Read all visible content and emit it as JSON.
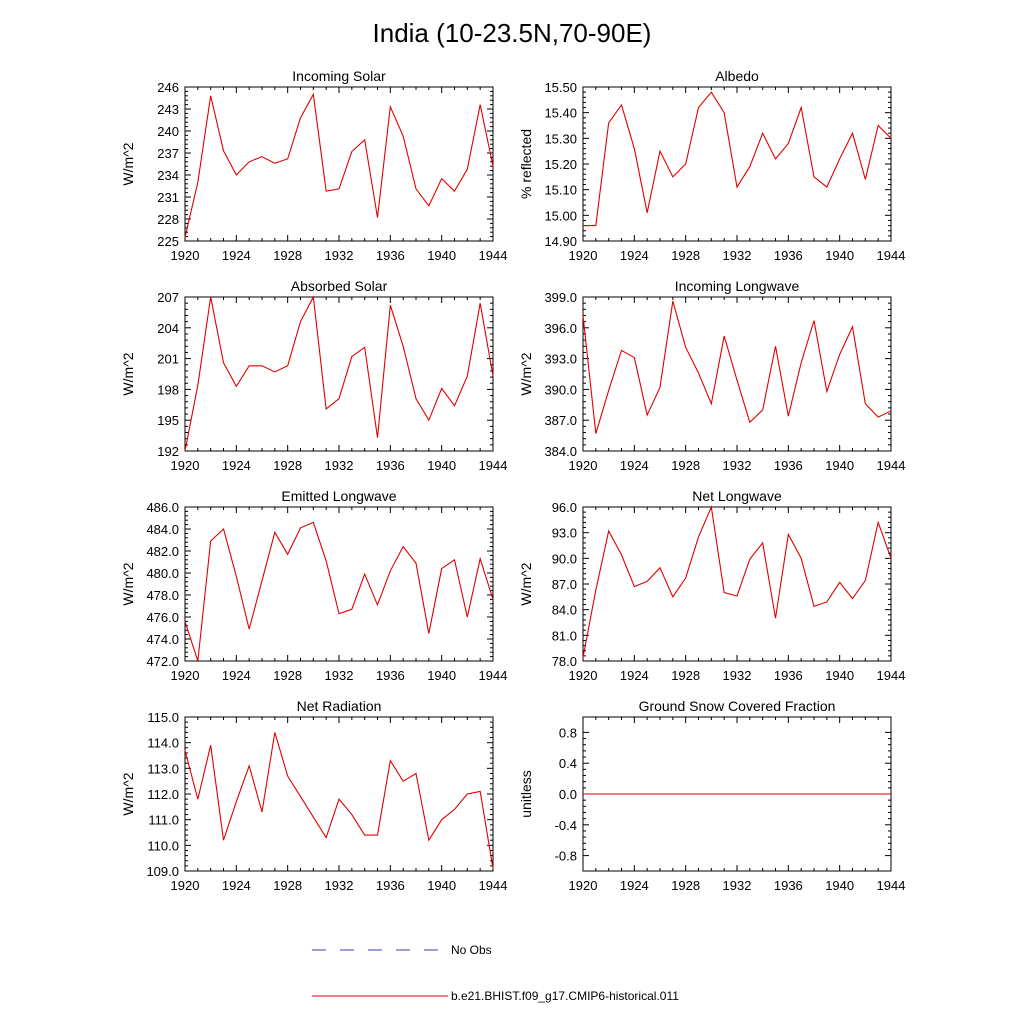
{
  "figure": {
    "title": "India (10-23.5N,70-90E)",
    "series_color": "#e00000",
    "obs_color": "#3b3bbf"
  },
  "legend": {
    "obs_label": "No Obs",
    "model_label": "b.e21.BHIST.f09_g17.CMIP6-historical.011"
  },
  "chart_data": [
    {
      "type": "line",
      "title": "Incoming Solar",
      "ylabel": "W/m^2",
      "xlim": [
        1920,
        1944
      ],
      "ylim": [
        225,
        246
      ],
      "yticks": [
        "225",
        "228",
        "231",
        "234",
        "237",
        "240",
        "243",
        "246"
      ],
      "xticks": [
        "1920",
        "1924",
        "1928",
        "1932",
        "1936",
        "1940",
        "1944"
      ],
      "x": [
        1920,
        1921,
        1922,
        1923,
        1924,
        1925,
        1926,
        1927,
        1928,
        1929,
        1930,
        1931,
        1932,
        1933,
        1934,
        1935,
        1936,
        1937,
        1938,
        1939,
        1940,
        1941,
        1942,
        1943,
        1944
      ],
      "series": [
        {
          "values": [
            225.5,
            233.0,
            244.8,
            237.3,
            234.0,
            235.8,
            236.5,
            235.6,
            236.2,
            241.8,
            245.0,
            231.8,
            232.1,
            237.2,
            238.8,
            228.2,
            243.3,
            239.3,
            232.1,
            229.8,
            233.5,
            231.8,
            234.8,
            243.6,
            235.2
          ]
        }
      ]
    },
    {
      "type": "line",
      "title": "Albedo",
      "ylabel": "% reflected",
      "xlim": [
        1920,
        1944
      ],
      "ylim": [
        14.9,
        15.5
      ],
      "yticks": [
        "14.90",
        "15.00",
        "15.10",
        "15.20",
        "15.30",
        "15.40",
        "15.50"
      ],
      "xticks": [
        "1920",
        "1924",
        "1928",
        "1932",
        "1936",
        "1940",
        "1944"
      ],
      "x": [
        1920,
        1921,
        1922,
        1923,
        1924,
        1925,
        1926,
        1927,
        1928,
        1929,
        1930,
        1931,
        1932,
        1933,
        1934,
        1935,
        1936,
        1937,
        1938,
        1939,
        1940,
        1941,
        1942,
        1943,
        1944
      ],
      "series": [
        {
          "values": [
            14.96,
            14.96,
            15.36,
            15.43,
            15.26,
            15.01,
            15.25,
            15.15,
            15.2,
            15.42,
            15.48,
            15.4,
            15.11,
            15.19,
            15.32,
            15.22,
            15.28,
            15.42,
            15.15,
            15.11,
            15.22,
            15.32,
            15.14,
            15.35,
            15.3
          ]
        }
      ]
    },
    {
      "type": "line",
      "title": "Absorbed Solar",
      "ylabel": "W/m^2",
      "xlim": [
        1920,
        1944
      ],
      "ylim": [
        192,
        207
      ],
      "yticks": [
        "192",
        "195",
        "198",
        "201",
        "204",
        "207"
      ],
      "xticks": [
        "1920",
        "1924",
        "1928",
        "1932",
        "1936",
        "1940",
        "1944"
      ],
      "x": [
        1920,
        1921,
        1922,
        1923,
        1924,
        1925,
        1926,
        1927,
        1928,
        1929,
        1930,
        1931,
        1932,
        1933,
        1934,
        1935,
        1936,
        1937,
        1938,
        1939,
        1940,
        1941,
        1942,
        1943,
        1944
      ],
      "series": [
        {
          "values": [
            192.0,
            198.4,
            207.0,
            200.6,
            198.3,
            200.3,
            200.3,
            199.7,
            200.3,
            204.6,
            207.0,
            196.1,
            197.1,
            201.2,
            202.1,
            193.3,
            206.2,
            202.2,
            197.1,
            195.0,
            198.1,
            196.4,
            199.3,
            206.4,
            199.3
          ]
        }
      ]
    },
    {
      "type": "line",
      "title": "Incoming Longwave",
      "ylabel": "W/m^2",
      "xlim": [
        1920,
        1944
      ],
      "ylim": [
        384,
        399
      ],
      "yticks": [
        "384.0",
        "387.0",
        "390.0",
        "393.0",
        "396.0",
        "399.0"
      ],
      "xticks": [
        "1920",
        "1924",
        "1928",
        "1932",
        "1936",
        "1940",
        "1944"
      ],
      "x": [
        1920,
        1921,
        1922,
        1923,
        1924,
        1925,
        1926,
        1927,
        1928,
        1929,
        1930,
        1931,
        1932,
        1933,
        1934,
        1935,
        1936,
        1937,
        1938,
        1939,
        1940,
        1941,
        1942,
        1943,
        1944
      ],
      "series": [
        {
          "values": [
            397.2,
            385.7,
            389.9,
            393.8,
            393.1,
            387.5,
            390.2,
            398.6,
            394.1,
            391.6,
            388.6,
            395.2,
            390.9,
            386.8,
            388.0,
            394.2,
            387.4,
            392.6,
            396.7,
            389.8,
            393.4,
            396.1,
            388.6,
            387.3,
            387.9
          ]
        }
      ]
    },
    {
      "type": "line",
      "title": "Emitted Longwave",
      "ylabel": "W/m^2",
      "xlim": [
        1920,
        1944
      ],
      "ylim": [
        472,
        486
      ],
      "yticks": [
        "472.0",
        "474.0",
        "476.0",
        "478.0",
        "480.0",
        "482.0",
        "484.0",
        "486.0"
      ],
      "xticks": [
        "1920",
        "1924",
        "1928",
        "1932",
        "1936",
        "1940",
        "1944"
      ],
      "x": [
        1920,
        1921,
        1922,
        1923,
        1924,
        1925,
        1926,
        1927,
        1928,
        1929,
        1930,
        1931,
        1932,
        1933,
        1934,
        1935,
        1936,
        1937,
        1938,
        1939,
        1940,
        1941,
        1942,
        1943,
        1944
      ],
      "series": [
        {
          "values": [
            475.6,
            472.0,
            482.9,
            484.0,
            479.7,
            474.9,
            479.3,
            483.7,
            481.7,
            484.1,
            484.6,
            481.1,
            476.3,
            476.7,
            479.9,
            477.1,
            480.2,
            482.4,
            480.9,
            474.5,
            480.4,
            481.2,
            476.0,
            481.3,
            477.6
          ]
        }
      ]
    },
    {
      "type": "line",
      "title": "Net Longwave",
      "ylabel": "W/m^2",
      "xlim": [
        1920,
        1944
      ],
      "ylim": [
        78,
        96
      ],
      "yticks": [
        "78.0",
        "81.0",
        "84.0",
        "87.0",
        "90.0",
        "93.0",
        "96.0"
      ],
      "xticks": [
        "1920",
        "1924",
        "1928",
        "1932",
        "1936",
        "1940",
        "1944"
      ],
      "x": [
        1920,
        1921,
        1922,
        1923,
        1924,
        1925,
        1926,
        1927,
        1928,
        1929,
        1930,
        1931,
        1932,
        1933,
        1934,
        1935,
        1936,
        1937,
        1938,
        1939,
        1940,
        1941,
        1942,
        1943,
        1944
      ],
      "series": [
        {
          "values": [
            78.4,
            86.3,
            93.2,
            90.4,
            86.7,
            87.3,
            88.9,
            85.5,
            87.7,
            92.5,
            96.0,
            86.0,
            85.6,
            89.9,
            91.8,
            83.0,
            92.8,
            90.0,
            84.4,
            84.9,
            87.2,
            85.3,
            87.4,
            94.2,
            90.0
          ]
        }
      ]
    },
    {
      "type": "line",
      "title": "Net Radiation",
      "ylabel": "W/m^2",
      "xlim": [
        1920,
        1944
      ],
      "ylim": [
        109,
        115
      ],
      "yticks": [
        "109.0",
        "110.0",
        "111.0",
        "112.0",
        "113.0",
        "114.0",
        "115.0"
      ],
      "xticks": [
        "1920",
        "1924",
        "1928",
        "1932",
        "1936",
        "1940",
        "1944"
      ],
      "x": [
        1920,
        1921,
        1922,
        1923,
        1924,
        1925,
        1926,
        1927,
        1928,
        1929,
        1930,
        1931,
        1932,
        1933,
        1934,
        1935,
        1936,
        1937,
        1938,
        1939,
        1940,
        1941,
        1942,
        1943,
        1944
      ],
      "series": [
        {
          "values": [
            113.7,
            111.8,
            113.9,
            110.2,
            111.7,
            113.1,
            111.3,
            114.4,
            112.7,
            111.9,
            111.1,
            110.3,
            111.8,
            111.2,
            110.4,
            110.4,
            113.3,
            112.5,
            112.8,
            110.2,
            111.0,
            111.4,
            112.0,
            112.1,
            109.1
          ]
        }
      ]
    },
    {
      "type": "line",
      "title": "Ground Snow Covered Fraction",
      "ylabel": "unitless",
      "xlim": [
        1920,
        1944
      ],
      "ylim": [
        -1.0,
        1.0
      ],
      "yticks": [
        "-0.8",
        "-0.4",
        "0.0",
        "0.4",
        "0.8"
      ],
      "ytick_values": [
        -0.8,
        -0.4,
        0.0,
        0.4,
        0.8
      ],
      "xticks": [
        "1920",
        "1924",
        "1928",
        "1932",
        "1936",
        "1940",
        "1944"
      ],
      "x": [
        1920,
        1921,
        1922,
        1923,
        1924,
        1925,
        1926,
        1927,
        1928,
        1929,
        1930,
        1931,
        1932,
        1933,
        1934,
        1935,
        1936,
        1937,
        1938,
        1939,
        1940,
        1941,
        1942,
        1943,
        1944
      ],
      "series": [
        {
          "values": [
            0,
            0,
            0,
            0,
            0,
            0,
            0,
            0,
            0,
            0,
            0,
            0,
            0,
            0,
            0,
            0,
            0,
            0,
            0,
            0,
            0,
            0,
            0,
            0,
            0
          ]
        }
      ]
    }
  ]
}
